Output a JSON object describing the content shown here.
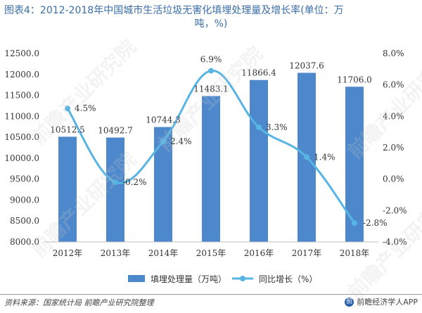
{
  "title": {
    "line1": "图表4：2012-2018年中国城市生活垃圾无害化填埋处理量及增长率(单位：万",
    "line2": "吨，%)"
  },
  "watermark": "前瞻产业研究院",
  "footer": {
    "source": "资料来源：国家统计局 前瞻产业研究院整理",
    "brand": "前瞻经济学人APP",
    "brand_logo": "前"
  },
  "colors": {
    "bar": "#4e88cc",
    "line": "#58b4e3",
    "title": "#3a6ea8"
  },
  "chart_data": {
    "type": "bar",
    "categories": [
      "2012年",
      "2013年",
      "2014年",
      "2015年",
      "2016年",
      "2017年",
      "2018年"
    ],
    "series": [
      {
        "name": "填埋处理量（万吨）",
        "type": "bar",
        "axis": "left",
        "values": [
          10512.5,
          10492.7,
          10744.3,
          11483.1,
          11866.4,
          12037.6,
          11706.0
        ],
        "labels": [
          "10512.5",
          "10492.7",
          "10744.3",
          "11483.1",
          "11866.4",
          "12037.6",
          "11706.0"
        ]
      },
      {
        "name": "同比增长（%）",
        "type": "line",
        "axis": "right",
        "values": [
          4.5,
          -0.2,
          2.4,
          6.9,
          3.3,
          1.4,
          -2.8
        ],
        "labels": [
          "4.5%",
          "-0.2%",
          "2.4%",
          "6.9%",
          "3.3%",
          "1.4%",
          "-2.8%"
        ]
      }
    ],
    "y_left": {
      "min": 8000,
      "max": 12500,
      "step": 500,
      "ticks": [
        "8000.0",
        "8500.0",
        "9000.0",
        "9500.0",
        "10000.0",
        "10500.0",
        "11000.0",
        "11500.0",
        "12000.0",
        "12500.0"
      ]
    },
    "y_right": {
      "min": -4,
      "max": 8,
      "step": 2,
      "ticks": [
        "-4.0%",
        "-2.0%",
        "0.0%",
        "2.0%",
        "4.0%",
        "6.0%",
        "8.0%"
      ]
    },
    "legend_position": "bottom",
    "grid": false
  }
}
